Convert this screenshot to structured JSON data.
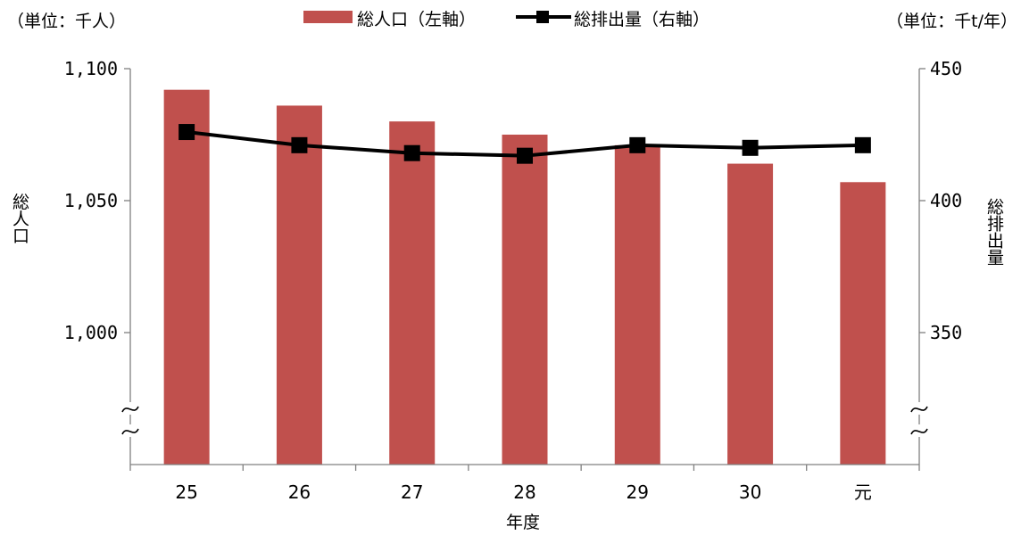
{
  "chart_data": {
    "type": "bar-line-combo",
    "categories": [
      "25",
      "26",
      "27",
      "28",
      "29",
      "30",
      "元"
    ],
    "series": [
      {
        "name": "総人口（左軸）",
        "type": "bar",
        "axis": "left",
        "color": "#c0504d",
        "values": [
          1092,
          1086,
          1080,
          1075,
          1071,
          1064,
          1057
        ]
      },
      {
        "name": "総排出量（右軸）",
        "type": "line",
        "axis": "right",
        "color": "#000000",
        "marker": "square",
        "values": [
          426,
          421,
          418,
          417,
          421,
          420,
          421
        ]
      }
    ],
    "left_axis": {
      "unit_label": "（単位：千人）",
      "title": "総人口",
      "ticks": [
        "1,000",
        "1,050",
        "1,100"
      ],
      "tick_values": [
        1000,
        1050,
        1100
      ],
      "range": [
        950,
        1100
      ],
      "broken": true
    },
    "right_axis": {
      "unit_label": "（単位：千t/年）",
      "title": "総排出量",
      "ticks": [
        "350",
        "400",
        "450"
      ],
      "tick_values": [
        350,
        400,
        450
      ],
      "range": [
        300,
        450
      ],
      "broken": true
    },
    "xlabel": "年度",
    "legend_position": "top",
    "grid": false
  }
}
